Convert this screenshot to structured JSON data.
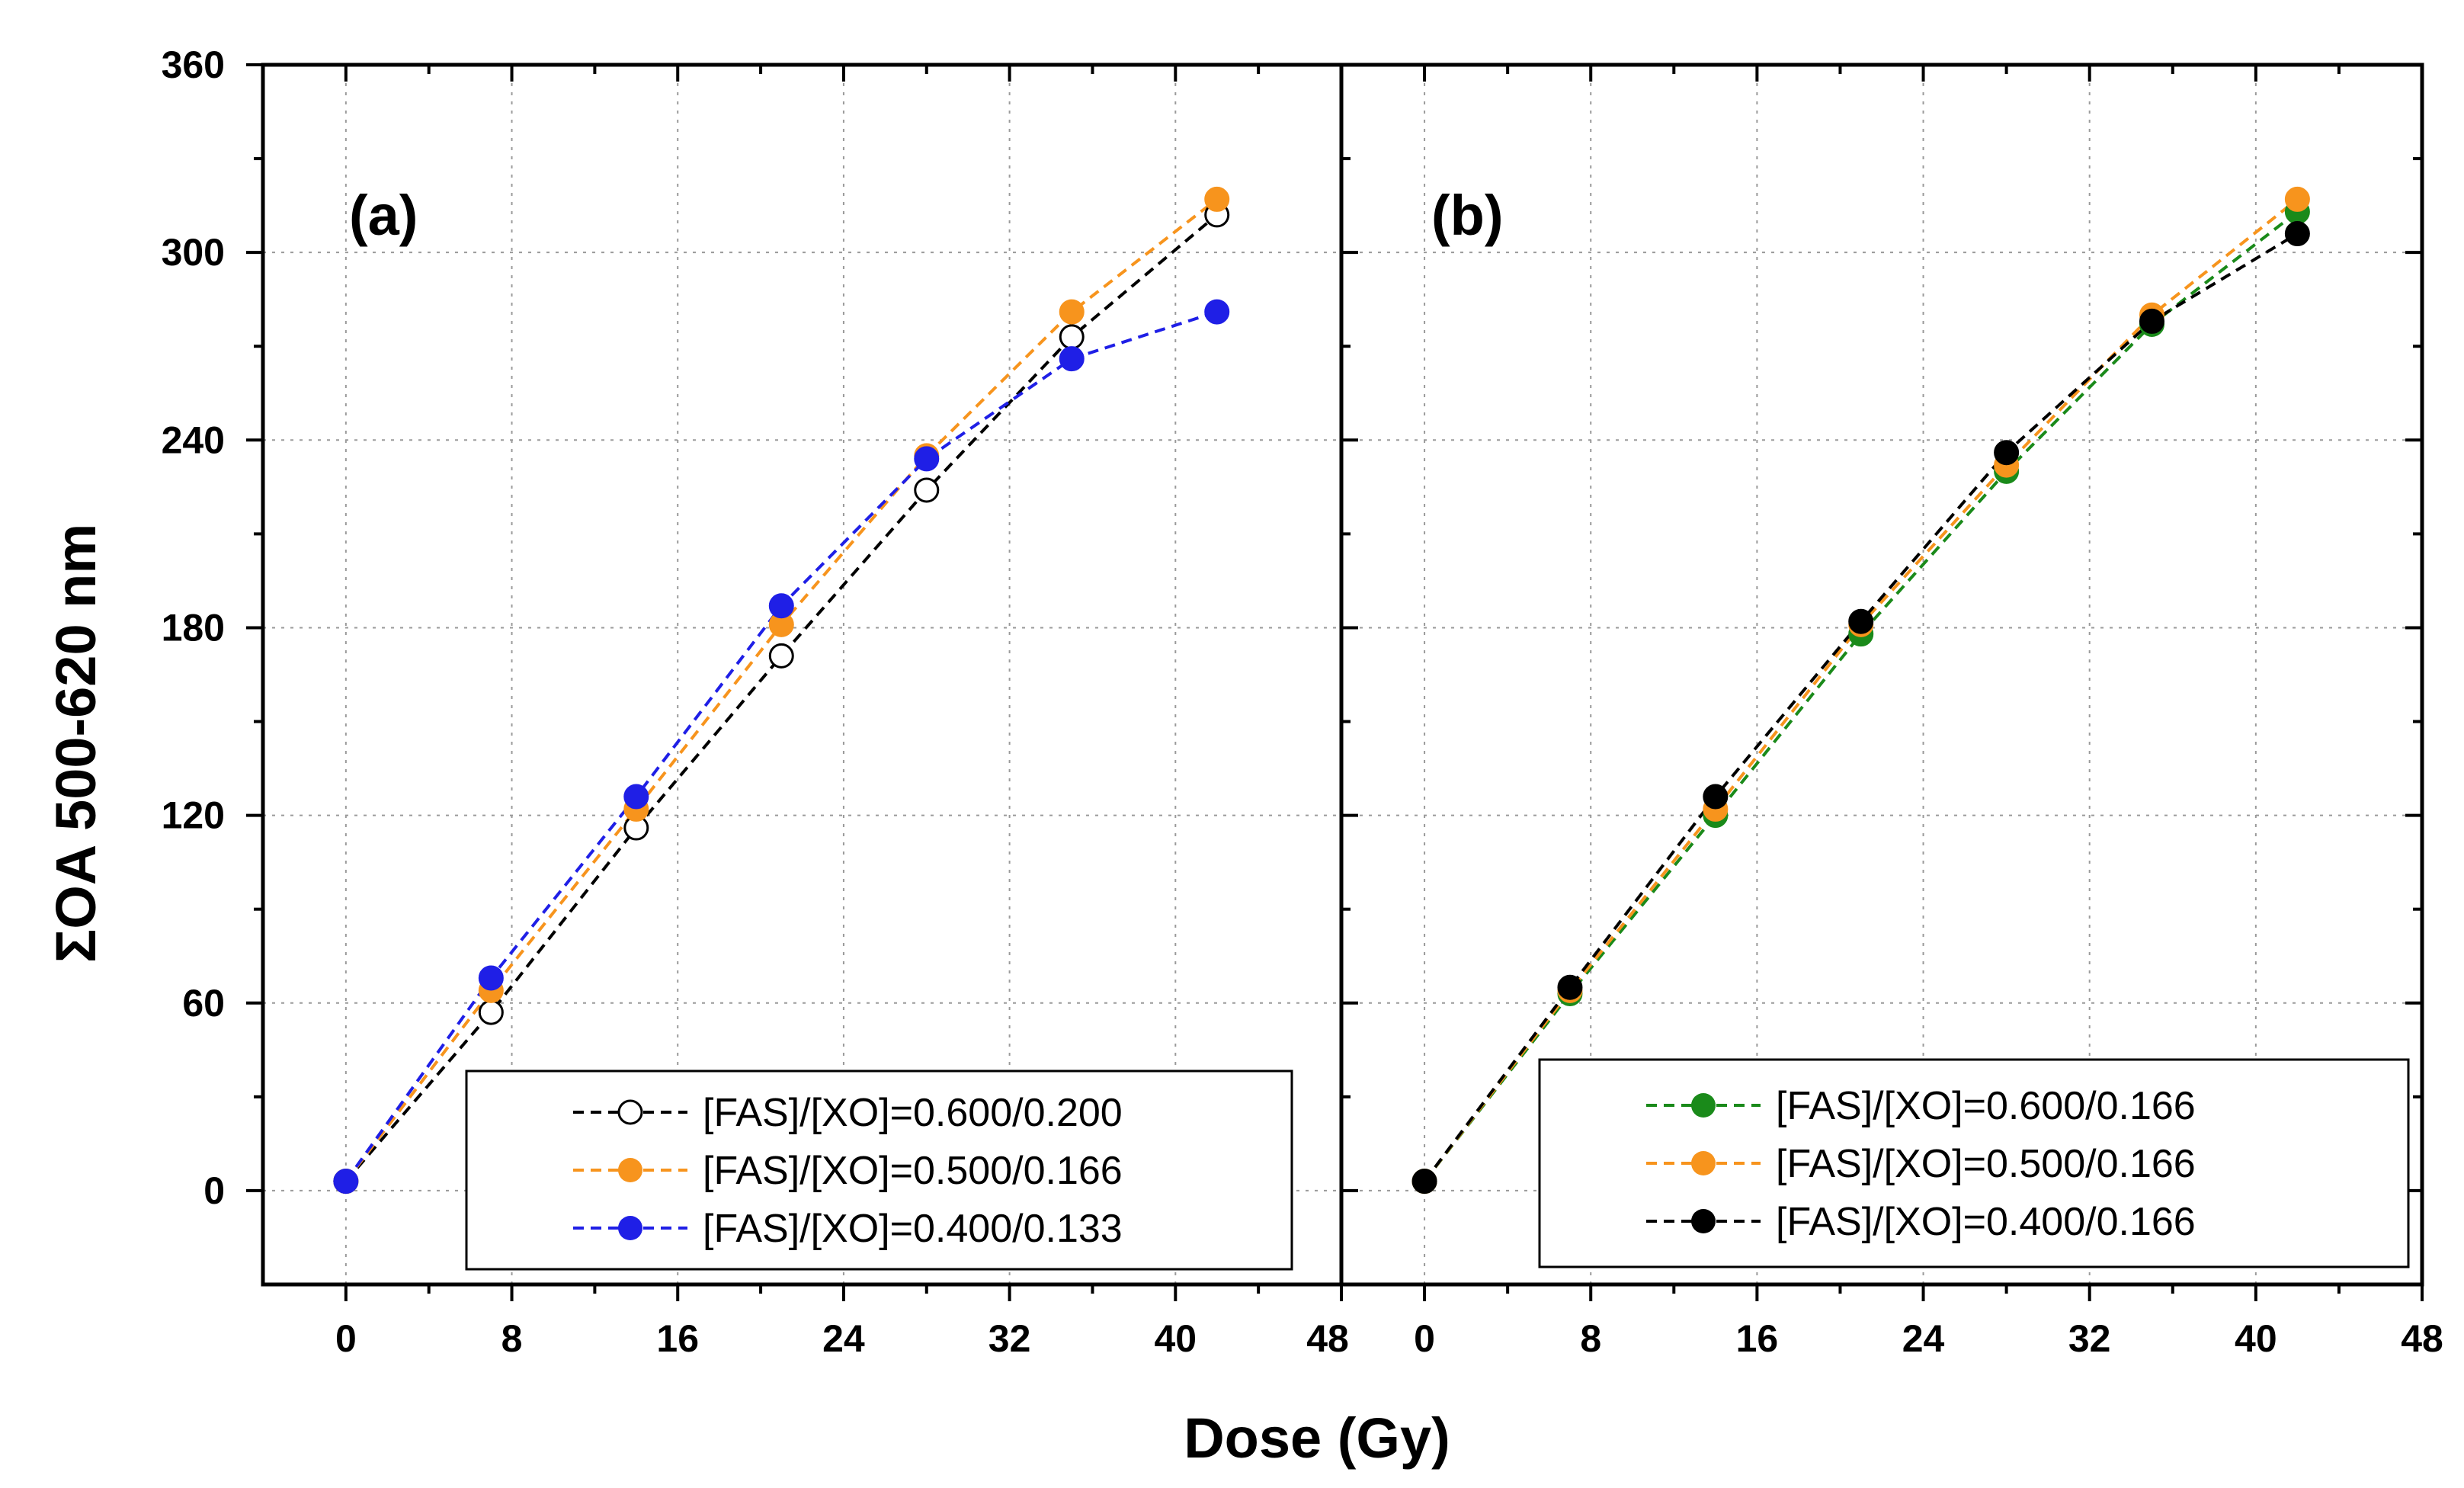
{
  "chart_data": {
    "type": "scatter",
    "xlabel": "Dose (Gy)",
    "ylabel": "ΣOA 500-620 nm",
    "xlim": [
      -4,
      48
    ],
    "ylim": [
      -30,
      360
    ],
    "xticks": [
      0,
      8,
      16,
      24,
      32,
      40,
      48
    ],
    "yticks": [
      0,
      60,
      120,
      180,
      240,
      300,
      360
    ],
    "grid": true,
    "panels": [
      {
        "label": "(a)",
        "legend_position": "bottom-right",
        "series": [
          {
            "name": "[FAS]/[XO]=0.600/0.200",
            "color": "#000000",
            "marker": "open-circle",
            "x": [
              0,
              7,
              14,
              21,
              28,
              35,
              42
            ],
            "y": [
              3,
              57,
              116,
              171,
              224,
              273,
              312
            ]
          },
          {
            "name": "[FAS]/[XO]=0.500/0.166",
            "color": "#f7941d",
            "marker": "filled-circle",
            "x": [
              0,
              7,
              14,
              21,
              28,
              35,
              42
            ],
            "y": [
              3,
              64,
              122,
              181,
              235,
              281,
              317
            ]
          },
          {
            "name": "[FAS]/[XO]=0.400/0.133",
            "color": "#1f1fe6",
            "marker": "filled-circle",
            "x": [
              0,
              7,
              14,
              21,
              28,
              35,
              42
            ],
            "y": [
              3,
              68,
              126,
              187,
              234,
              266,
              281
            ]
          }
        ]
      },
      {
        "label": "(b)",
        "legend_position": "bottom-right",
        "series": [
          {
            "name": "[FAS]/[XO]=0.600/0.166",
            "color": "#1a8a1a",
            "marker": "filled-circle",
            "x": [
              0,
              7,
              14,
              21,
              28,
              35,
              42
            ],
            "y": [
              3,
              63,
              120,
              178,
              230,
              277,
              313
            ]
          },
          {
            "name": "[FAS]/[XO]=0.500/0.166",
            "color": "#f7941d",
            "marker": "filled-circle",
            "x": [
              0,
              7,
              14,
              21,
              28,
              35,
              42
            ],
            "y": [
              3,
              64,
              122,
              181,
              232,
              280,
              317
            ]
          },
          {
            "name": "[FAS]/[XO]=0.400/0.166",
            "color": "#000000",
            "marker": "filled-circle",
            "x": [
              0,
              7,
              14,
              21,
              28,
              35,
              42
            ],
            "y": [
              3,
              65,
              126,
              182,
              236,
              278,
              306
            ]
          }
        ]
      }
    ]
  }
}
